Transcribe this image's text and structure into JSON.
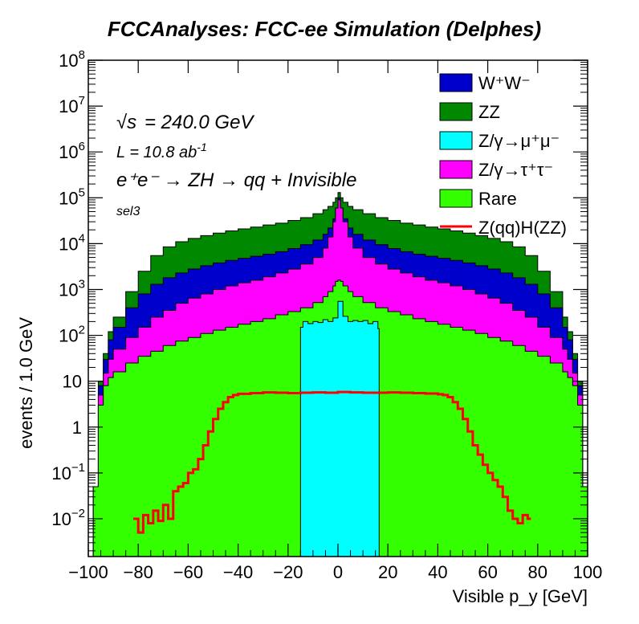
{
  "title": "FCCAnalyses: FCC-ee Simulation (Delphes)",
  "annotations": {
    "sqrt_s_symbol": "√s",
    "energy": "= 240.0 GeV",
    "lumi_prefix": "L = 10.8 ab",
    "lumi_exp": "-1",
    "process": "e⁺e⁻ → ZH → qq + Invisible",
    "selection": "sel3"
  },
  "legend": [
    {
      "label": "W⁺W⁻",
      "color": "#0000cc",
      "kind": "box"
    },
    {
      "label": "ZZ",
      "color": "#008800",
      "kind": "box"
    },
    {
      "label": "Z/γ→μ⁺μ⁻",
      "color": "#00ffff",
      "kind": "box"
    },
    {
      "label": "Z/γ→τ⁺τ⁻",
      "color": "#ff00ff",
      "kind": "box"
    },
    {
      "label": "Rare",
      "color": "#33ff00",
      "kind": "box"
    },
    {
      "label": "Z(qq)H(ZZ)",
      "color": "#ff0000",
      "kind": "line"
    }
  ],
  "chart_data": {
    "type": "area",
    "title": "FCCAnalyses: FCC-ee Simulation (Delphes)",
    "xlabel": "Visible p_y [GeV]",
    "ylabel": "events / 1.0 GeV",
    "xlim": [
      -100,
      100
    ],
    "ylim": [
      0.0015,
      100000000
    ],
    "yscale": "log",
    "stacked": true,
    "x_ticks": [
      "−100",
      "−80",
      "−60",
      "−40",
      "−20",
      "0",
      "20",
      "40",
      "60",
      "80",
      "100"
    ],
    "y_ticks": [
      {
        "base": "10",
        "exp": "−2",
        "value": 0.01
      },
      {
        "base": "10",
        "exp": "−1",
        "value": 0.1
      },
      {
        "base": "1",
        "exp": "",
        "value": 1
      },
      {
        "base": "10",
        "exp": "",
        "value": 10
      },
      {
        "base": "10",
        "exp": "2",
        "value": 100
      },
      {
        "base": "10",
        "exp": "3",
        "value": 1000
      },
      {
        "base": "10",
        "exp": "4",
        "value": 10000
      },
      {
        "base": "10",
        "exp": "5",
        "value": 100000
      },
      {
        "base": "10",
        "exp": "6",
        "value": 1000000
      },
      {
        "base": "10",
        "exp": "7",
        "value": 10000000
      },
      {
        "base": "10",
        "exp": "8",
        "value": 100000000
      }
    ],
    "x": [
      -100,
      -98,
      -96,
      -94,
      -92,
      -90,
      -85,
      -80,
      -75,
      -70,
      -65,
      -60,
      -55,
      -50,
      -45,
      -40,
      -35,
      -30,
      -25,
      -20,
      -15,
      -10,
      -6,
      -4,
      -2,
      -1,
      0,
      1,
      2,
      4,
      6,
      10,
      15,
      20,
      25,
      30,
      35,
      40,
      45,
      50,
      55,
      60,
      65,
      70,
      75,
      80,
      85,
      90,
      92,
      94,
      96,
      98,
      100
    ],
    "series_stack_totals": [
      {
        "name": "Rare",
        "color": "#33ff00",
        "values": [
          0.0015,
          0.05,
          3,
          8,
          12,
          16,
          25,
          35,
          45,
          60,
          75,
          90,
          110,
          130,
          150,
          175,
          200,
          230,
          280,
          330,
          400,
          520,
          700,
          900,
          1200,
          1500,
          1600,
          1500,
          1200,
          900,
          700,
          520,
          400,
          330,
          280,
          230,
          200,
          175,
          150,
          130,
          110,
          90,
          75,
          60,
          45,
          35,
          25,
          16,
          12,
          8,
          3,
          0.05,
          0.0015
        ]
      },
      {
        "name": "Z/γ→τ⁺τ⁻",
        "color": "#ff00ff",
        "values": [
          0.0015,
          0.05,
          5,
          15,
          30,
          50,
          90,
          150,
          250,
          350,
          500,
          650,
          800,
          1000,
          1200,
          1400,
          1600,
          1900,
          2300,
          2800,
          3600,
          5000,
          8000,
          14000,
          30000,
          60000,
          90000,
          60000,
          30000,
          14000,
          8000,
          5000,
          3600,
          2800,
          2300,
          1900,
          1600,
          1400,
          1200,
          1000,
          800,
          650,
          500,
          350,
          250,
          150,
          90,
          50,
          30,
          15,
          5,
          0.05,
          0.0015
        ]
      },
      {
        "name": "W⁺W⁻",
        "color": "#0000cc",
        "values": [
          0.0015,
          0.05,
          8,
          30,
          80,
          150,
          400,
          800,
          1300,
          1800,
          2300,
          2800,
          3300,
          3800,
          4300,
          4800,
          5300,
          5900,
          6700,
          7800,
          9500,
          12000,
          16000,
          22000,
          35000,
          60000,
          100000,
          60000,
          35000,
          22000,
          16000,
          12000,
          9500,
          7800,
          6700,
          5900,
          5300,
          4800,
          4300,
          3800,
          3300,
          2800,
          2300,
          1800,
          1300,
          800,
          400,
          150,
          80,
          30,
          8,
          0.05,
          0.0015
        ]
      },
      {
        "name": "ZZ",
        "color": "#008800",
        "values": [
          0.0015,
          0.05,
          10,
          40,
          120,
          250,
          900,
          2500,
          5500,
          8500,
          11000,
          13000,
          15000,
          17000,
          19000,
          21000,
          23000,
          25500,
          28000,
          32000,
          37000,
          45000,
          55000,
          65000,
          80000,
          100000,
          130000,
          100000,
          80000,
          65000,
          55000,
          45000,
          37000,
          32000,
          28000,
          25500,
          23000,
          21000,
          19000,
          17000,
          15000,
          13000,
          11000,
          8500,
          5500,
          2500,
          900,
          250,
          120,
          40,
          10,
          0.05,
          0.0015
        ]
      }
    ],
    "mumu_block": {
      "name": "Z/γ→μ⁺μ⁻",
      "color": "#00ffff",
      "x": [
        -15,
        -14,
        -12,
        -10,
        -8,
        -6,
        -4,
        -2,
        0,
        2,
        4,
        6,
        8,
        10,
        12,
        14,
        16,
        16.5
      ],
      "top": [
        150,
        200,
        180,
        200,
        190,
        220,
        200,
        240,
        550,
        260,
        200,
        210,
        200,
        210,
        180,
        200,
        140,
        140
      ]
    },
    "signal": {
      "name": "Z(qq)H(ZZ)",
      "color": "#ff0000",
      "x": [
        -82,
        -80,
        -78,
        -76,
        -74,
        -72,
        -70,
        -68,
        -66,
        -64,
        -62,
        -60,
        -58,
        -56,
        -54,
        -52,
        -50,
        -48,
        -46,
        -44,
        -42,
        -40,
        -35,
        -30,
        -25,
        -20,
        -15,
        -10,
        -5,
        0,
        5,
        10,
        15,
        20,
        25,
        30,
        35,
        40,
        42,
        44,
        46,
        48,
        50,
        52,
        54,
        56,
        58,
        60,
        62,
        64,
        66,
        68,
        70,
        72,
        74,
        76
      ],
      "values": [
        0.01,
        0.005,
        0.012,
        0.008,
        0.015,
        0.009,
        0.02,
        0.01,
        0.04,
        0.05,
        0.06,
        0.1,
        0.12,
        0.2,
        0.4,
        0.8,
        1.5,
        2.5,
        3.5,
        4.5,
        5,
        5.3,
        5.5,
        5.7,
        5.6,
        5.5,
        5.6,
        5.7,
        5.6,
        5.8,
        5.7,
        5.6,
        5.6,
        5.7,
        5.6,
        5.5,
        5.4,
        5.2,
        5,
        4.5,
        3.5,
        2.5,
        1.5,
        0.8,
        0.4,
        0.25,
        0.15,
        0.1,
        0.07,
        0.05,
        0.03,
        0.015,
        0.01,
        0.008,
        0.012,
        0.01
      ]
    }
  }
}
